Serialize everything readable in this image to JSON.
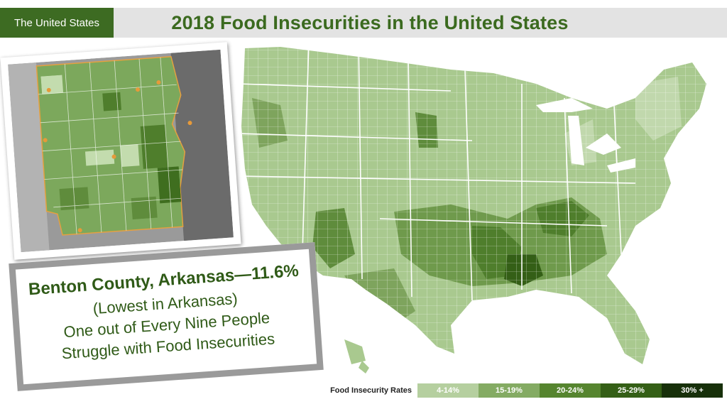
{
  "header": {
    "tag": "The United States",
    "title": "2018 Food Insecurities in the United States"
  },
  "callout": {
    "line1": "Benton County, Arkansas—11.6%",
    "line2": "(Lowest in Arkansas)",
    "line3": "One out of Every Nine People",
    "line4": "Struggle with Food Insecurities"
  },
  "legend": {
    "title": "Food Insecurity Rates",
    "items": [
      {
        "label": "4-14%",
        "color": "#b5cf9f"
      },
      {
        "label": "15-19%",
        "color": "#84ab63"
      },
      {
        "label": "20-24%",
        "color": "#56852f"
      },
      {
        "label": "25-29%",
        "color": "#345f16"
      },
      {
        "label": "30% +",
        "color": "#17300a"
      }
    ]
  },
  "colors": {
    "tag_bg": "#3d6b22",
    "title_text": "#3b6a1f",
    "title_band": "#e3e3e3",
    "map_base": "#a9c98f"
  }
}
